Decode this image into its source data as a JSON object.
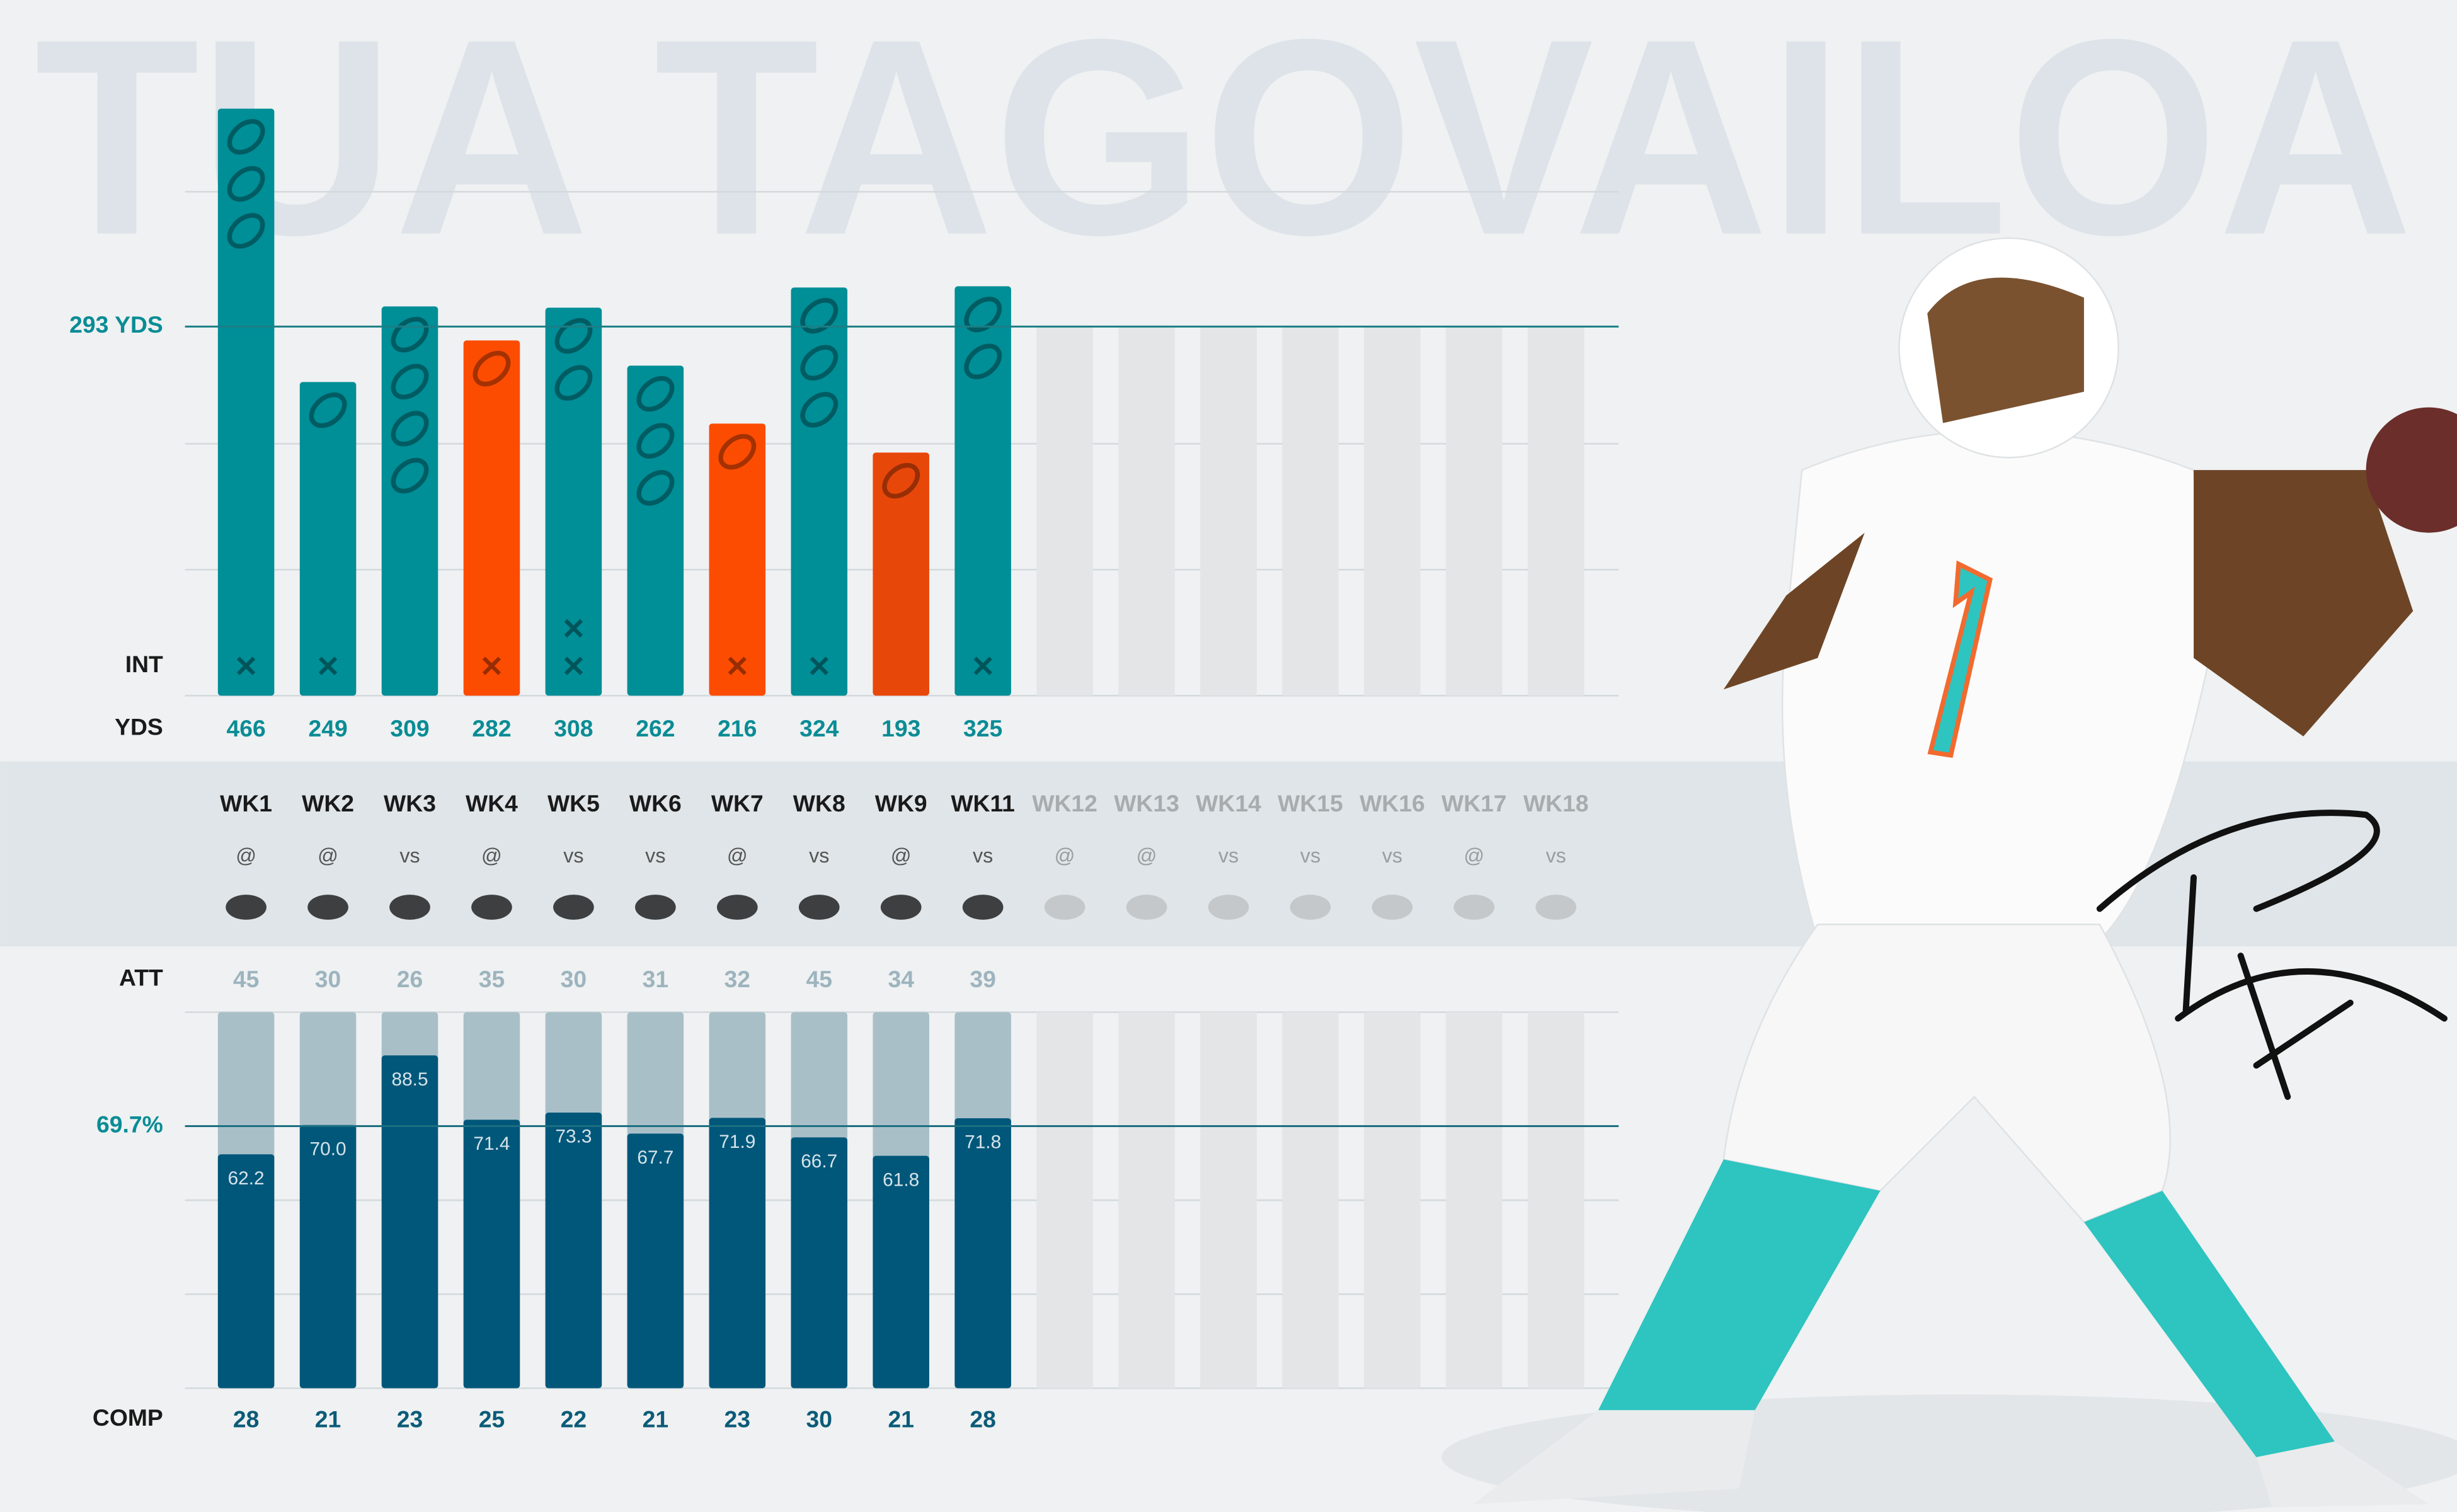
{
  "chart_data": {
    "type": "bar",
    "title": "TUA TAGOVAILOA",
    "categories": [
      "WK1",
      "WK2",
      "WK3",
      "WK4",
      "WK5",
      "WK6",
      "WK7",
      "WK8",
      "WK9",
      "WK11",
      "WK12",
      "WK13",
      "WK14",
      "WK15",
      "WK16",
      "WK17",
      "WK18"
    ],
    "locations": [
      "@",
      "@",
      "vs",
      "@",
      "vs",
      "vs",
      "@",
      "vs",
      "@",
      "vs",
      "@",
      "@",
      "vs",
      "vs",
      "vs",
      "@",
      "vs"
    ],
    "yards": {
      "label": "YDS",
      "values": [
        466,
        249,
        309,
        282,
        308,
        262,
        216,
        324,
        193,
        325,
        null,
        null,
        null,
        null,
        null,
        null,
        null
      ],
      "colors": [
        "#008e97",
        "#008e97",
        "#008e97",
        "#fc4c02",
        "#008e97",
        "#008e97",
        "#fc4c02",
        "#008e97",
        "#e8470a",
        "#008e97",
        null,
        null,
        null,
        null,
        null,
        null,
        null
      ]
    },
    "touchdowns": {
      "values": [
        3,
        1,
        4,
        1,
        2,
        3,
        1,
        3,
        1,
        2,
        null,
        null,
        null,
        null,
        null,
        null,
        null
      ]
    },
    "interceptions": {
      "label": "INT",
      "values": [
        1,
        1,
        0,
        1,
        2,
        0,
        1,
        1,
        0,
        1,
        null,
        null,
        null,
        null,
        null,
        null,
        null
      ]
    },
    "attempts": {
      "label": "ATT",
      "values": [
        45,
        30,
        26,
        35,
        30,
        31,
        32,
        45,
        34,
        39,
        null,
        null,
        null,
        null,
        null,
        null,
        null
      ]
    },
    "completions": {
      "label": "COMP",
      "values": [
        28,
        21,
        23,
        25,
        22,
        21,
        23,
        30,
        21,
        28,
        null,
        null,
        null,
        null,
        null,
        null,
        null
      ]
    },
    "completion_pct": {
      "values": [
        62.2,
        70,
        88.5,
        71.4,
        73.3,
        67.7,
        71.9,
        66.7,
        61.8,
        71.8,
        null,
        null,
        null,
        null,
        null,
        null,
        null
      ],
      "value_labels": [
        "62.2",
        "70.0",
        "88.5",
        "71.4",
        "73.3",
        "67.7",
        "71.9",
        "66.7",
        "61.8",
        "71.8",
        null,
        null,
        null,
        null,
        null,
        null,
        null
      ]
    },
    "yards_average": {
      "value": 293,
      "label": "293 YDS"
    },
    "pct_average": {
      "value": 69.7,
      "label": "69.7%"
    },
    "ylim": [
      0,
      500
    ],
    "yticks": [
      0,
      100,
      200,
      400
    ],
    "y2lim": [
      0,
      100
    ],
    "y2ticks": [
      0,
      25,
      50,
      100
    ],
    "grid": true
  }
}
